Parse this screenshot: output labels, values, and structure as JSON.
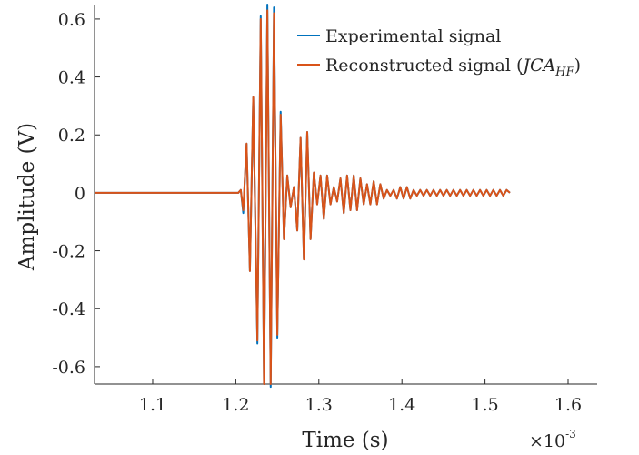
{
  "chart_data": {
    "type": "line",
    "title": "",
    "xlabel": "Time (s)",
    "ylabel": "Amplitude (V)",
    "x_multiplier_label": "×10",
    "x_multiplier_exponent": "-3",
    "xlim": [
      1.03,
      1.635
    ],
    "ylim": [
      -0.66,
      0.65
    ],
    "x_ticks": [
      1.1,
      1.2,
      1.3,
      1.4,
      1.5,
      1.6
    ],
    "x_tick_labels": [
      "1.1",
      "1.2",
      "1.3",
      "1.4",
      "1.5",
      "1.6"
    ],
    "y_ticks": [
      0.6,
      0.4,
      0.2,
      0,
      -0.2,
      -0.4,
      -0.6
    ],
    "y_tick_labels": [
      "0.6",
      "0.4",
      "0.2",
      "0",
      "-0.2",
      "-0.4",
      "-0.6"
    ],
    "grid": false,
    "legend_position": "top-right",
    "series": [
      {
        "name": "Experimental signal",
        "color": "#0072BD",
        "x": [
          1.03,
          1.203,
          1.206,
          1.209,
          1.213,
          1.217,
          1.221,
          1.226,
          1.23,
          1.234,
          1.238,
          1.242,
          1.246,
          1.25,
          1.254,
          1.258,
          1.262,
          1.266,
          1.27,
          1.274,
          1.278,
          1.282,
          1.286,
          1.29,
          1.294,
          1.298,
          1.302,
          1.306,
          1.31,
          1.314,
          1.318,
          1.322,
          1.326,
          1.33,
          1.334,
          1.338,
          1.342,
          1.346,
          1.35,
          1.354,
          1.358,
          1.362,
          1.366,
          1.37,
          1.374,
          1.378,
          1.382,
          1.386,
          1.39,
          1.394,
          1.398,
          1.402,
          1.406,
          1.41,
          1.414,
          1.418,
          1.422,
          1.426,
          1.43,
          1.434,
          1.438,
          1.442,
          1.446,
          1.45,
          1.454,
          1.458,
          1.462,
          1.466,
          1.47,
          1.474,
          1.478,
          1.482,
          1.486,
          1.49,
          1.494,
          1.498,
          1.502,
          1.506,
          1.51,
          1.514,
          1.518,
          1.522,
          1.526,
          1.53
        ],
        "y": [
          0,
          0,
          0.01,
          -0.07,
          0.17,
          -0.27,
          0.33,
          -0.52,
          0.61,
          -0.66,
          0.65,
          -0.67,
          0.64,
          -0.5,
          0.28,
          -0.16,
          0.06,
          -0.05,
          0.02,
          -0.13,
          0.19,
          -0.23,
          0.21,
          -0.16,
          0.07,
          -0.04,
          0.06,
          -0.09,
          0.06,
          -0.04,
          0.02,
          -0.03,
          0.05,
          -0.07,
          0.06,
          -0.06,
          0.06,
          -0.06,
          0.05,
          -0.04,
          0.03,
          -0.04,
          0.04,
          -0.04,
          0.03,
          -0.02,
          0.01,
          -0.01,
          0.01,
          -0.02,
          0.02,
          -0.02,
          0.02,
          -0.02,
          0.01,
          -0.01,
          0.01,
          -0.01,
          0.01,
          -0.01,
          0.01,
          -0.01,
          0.01,
          -0.01,
          0.01,
          -0.01,
          0.01,
          -0.01,
          0.01,
          -0.01,
          0.01,
          -0.01,
          0.01,
          -0.01,
          0.01,
          -0.01,
          0.01,
          -0.01,
          0.01,
          -0.01,
          0.01,
          -0.01,
          0.01,
          0
        ]
      },
      {
        "name": "Reconstructed signal (JCA_HF)",
        "legend_main": "Reconstructed signal (",
        "legend_math": "JCA",
        "legend_sub": "HF",
        "legend_close": ")",
        "color": "#D95319",
        "x": [
          1.03,
          1.203,
          1.206,
          1.209,
          1.213,
          1.217,
          1.221,
          1.226,
          1.23,
          1.234,
          1.238,
          1.242,
          1.246,
          1.25,
          1.254,
          1.258,
          1.262,
          1.266,
          1.27,
          1.274,
          1.278,
          1.282,
          1.286,
          1.29,
          1.294,
          1.298,
          1.302,
          1.306,
          1.31,
          1.314,
          1.318,
          1.322,
          1.326,
          1.33,
          1.334,
          1.338,
          1.342,
          1.346,
          1.35,
          1.354,
          1.358,
          1.362,
          1.366,
          1.37,
          1.374,
          1.378,
          1.382,
          1.386,
          1.39,
          1.394,
          1.398,
          1.402,
          1.406,
          1.41,
          1.414,
          1.418,
          1.422,
          1.426,
          1.43,
          1.434,
          1.438,
          1.442,
          1.446,
          1.45,
          1.454,
          1.458,
          1.462,
          1.466,
          1.47,
          1.474,
          1.478,
          1.482,
          1.486,
          1.49,
          1.494,
          1.498,
          1.502,
          1.506,
          1.51,
          1.514,
          1.518,
          1.522,
          1.526,
          1.53
        ],
        "y": [
          0,
          0,
          0.01,
          -0.06,
          0.17,
          -0.27,
          0.33,
          -0.51,
          0.6,
          -0.66,
          0.63,
          -0.66,
          0.62,
          -0.49,
          0.27,
          -0.16,
          0.06,
          -0.05,
          0.02,
          -0.13,
          0.19,
          -0.23,
          0.21,
          -0.16,
          0.07,
          -0.04,
          0.06,
          -0.09,
          0.06,
          -0.04,
          0.02,
          -0.03,
          0.05,
          -0.07,
          0.06,
          -0.06,
          0.06,
          -0.06,
          0.05,
          -0.04,
          0.03,
          -0.04,
          0.04,
          -0.04,
          0.03,
          -0.02,
          0.01,
          -0.01,
          0.01,
          -0.02,
          0.02,
          -0.02,
          0.02,
          -0.02,
          0.01,
          -0.01,
          0.01,
          -0.01,
          0.01,
          -0.01,
          0.01,
          -0.01,
          0.01,
          -0.01,
          0.01,
          -0.01,
          0.01,
          -0.01,
          0.01,
          -0.01,
          0.01,
          -0.01,
          0.01,
          -0.01,
          0.01,
          -0.01,
          0.01,
          -0.01,
          0.01,
          -0.01,
          0.01,
          -0.01,
          0.01,
          0
        ]
      }
    ]
  }
}
